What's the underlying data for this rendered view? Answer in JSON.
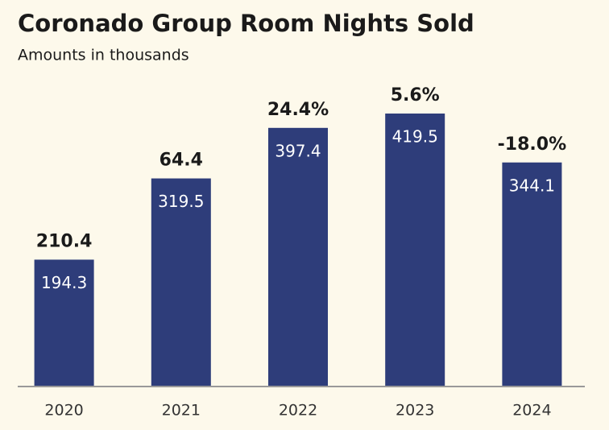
{
  "chart_data": {
    "type": "bar",
    "title": "Coronado Group Room Nights Sold",
    "subtitle": "Amounts in thousands",
    "categories": [
      "2020",
      "2021",
      "2022",
      "2023",
      "2024"
    ],
    "values": [
      194.3,
      319.5,
      397.4,
      419.5,
      344.1
    ],
    "annotations": [
      "210.4",
      "64.4",
      "24.4%",
      "5.6%",
      "-18.0%"
    ],
    "color": "#2e3d7a"
  }
}
